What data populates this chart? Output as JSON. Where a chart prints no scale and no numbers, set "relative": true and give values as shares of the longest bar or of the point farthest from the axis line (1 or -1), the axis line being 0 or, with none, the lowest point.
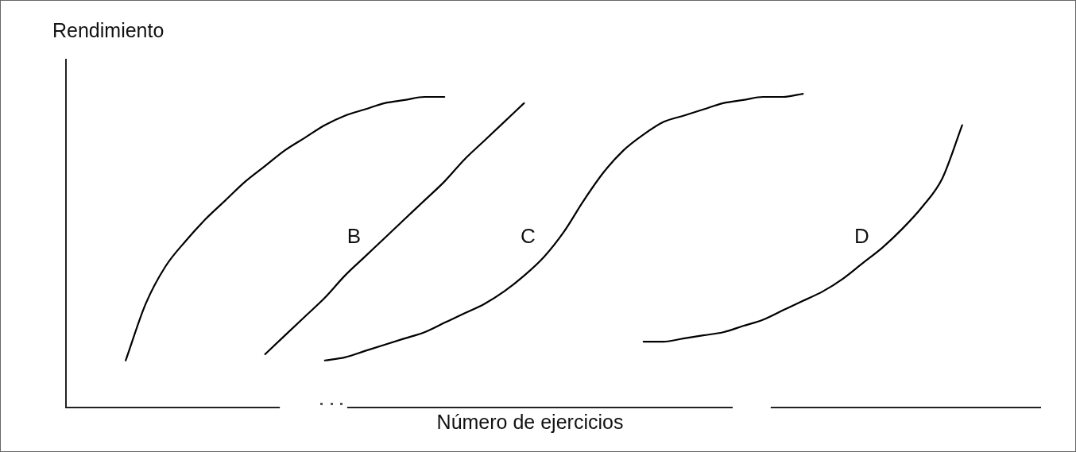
{
  "chart_data": {
    "type": "line",
    "relative": true,
    "tick_labels": false,
    "ylabel": "Rendimiento",
    "xlabel": "Número de ejercicios",
    "categories": [
      null,
      null,
      null,
      null,
      null,
      null,
      null,
      null,
      null,
      null,
      null,
      null,
      null,
      null,
      null,
      null,
      null,
      null,
      null,
      null,
      null,
      null,
      null,
      null,
      null,
      null,
      null,
      null,
      null,
      null,
      null,
      null,
      null,
      null,
      null,
      null,
      null,
      null,
      null,
      null,
      null,
      null,
      null,
      null,
      null,
      null,
      null,
      null,
      null,
      null
    ],
    "series": [
      {
        "color": "#000000",
        "values": [
          null,
          null,
          null,
          0.15,
          0.33,
          0.45,
          0.53,
          0.6,
          0.66,
          0.72,
          0.77,
          0.82,
          0.86,
          0.9,
          0.93,
          0.95,
          0.97,
          0.98,
          0.99,
          0.99,
          null,
          null,
          null,
          null,
          null,
          null,
          null,
          null,
          null,
          null,
          null,
          null,
          null,
          null,
          null,
          null,
          null,
          null,
          null,
          null,
          null,
          null,
          null,
          null,
          null,
          null,
          null,
          null,
          null,
          null
        ]
      },
      {
        "name": "B",
        "color": "#000000",
        "values": [
          null,
          null,
          null,
          null,
          null,
          null,
          null,
          null,
          null,
          null,
          0.17,
          0.23,
          0.29,
          0.35,
          0.42,
          0.48,
          0.54,
          0.6,
          0.66,
          0.72,
          0.79,
          0.85,
          0.91,
          0.97,
          null,
          null,
          null,
          null,
          null,
          null,
          null,
          null,
          null,
          null,
          null,
          null,
          null,
          null,
          null,
          null,
          null,
          null,
          null,
          null,
          null,
          null,
          null,
          null,
          null,
          null
        ]
      },
      {
        "name": "C",
        "color": "#000000",
        "values": [
          null,
          null,
          null,
          null,
          null,
          null,
          null,
          null,
          null,
          null,
          null,
          null,
          null,
          0.15,
          0.16,
          0.18,
          0.2,
          0.22,
          0.24,
          0.27,
          0.3,
          0.33,
          0.37,
          0.42,
          0.48,
          0.56,
          0.66,
          0.75,
          0.82,
          0.87,
          0.91,
          0.93,
          0.95,
          0.97,
          0.98,
          0.99,
          0.99,
          1,
          null,
          null,
          null,
          null,
          null,
          null,
          null,
          null,
          null,
          null,
          null,
          null
        ]
      },
      {
        "name": "D",
        "color": "#000000",
        "values": [
          null,
          null,
          null,
          null,
          null,
          null,
          null,
          null,
          null,
          null,
          null,
          null,
          null,
          null,
          null,
          null,
          null,
          null,
          null,
          null,
          null,
          null,
          null,
          null,
          null,
          null,
          null,
          null,
          null,
          0.21,
          0.21,
          0.22,
          0.23,
          0.24,
          0.26,
          0.28,
          0.31,
          0.34,
          0.37,
          0.41,
          0.46,
          0.51,
          0.57,
          0.64,
          0.73,
          0.9,
          null,
          null,
          null,
          null
        ]
      }
    ]
  }
}
